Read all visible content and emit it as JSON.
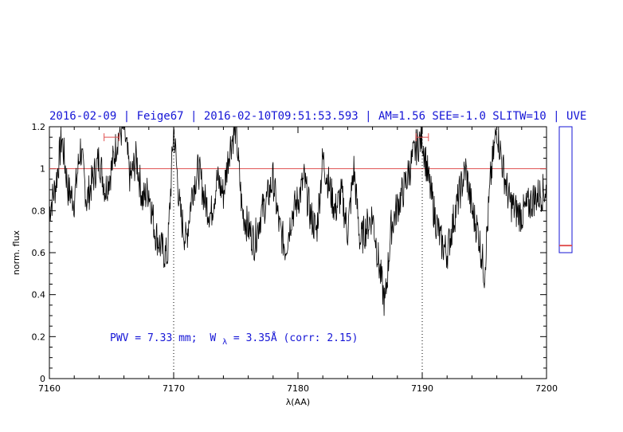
{
  "chart_data": {
    "type": "line",
    "title": "2016-02-09 | Feige67 | 2016-02-10T09:51:53.593 | AM=1.56  SEE=-1.0  SLITW=10 | UVE",
    "xlabel": "λ(AA)",
    "ylabel": "norm. flux",
    "xlim": [
      7160,
      7200
    ],
    "ylim": [
      0,
      1.2
    ],
    "xticks": [
      7160,
      7170,
      7180,
      7190,
      7200
    ],
    "yticks": [
      0,
      0.2,
      0.4,
      0.6,
      0.8,
      1,
      1.2
    ],
    "xtick_labels": [
      "7160",
      "7170",
      "7180",
      "7190",
      "7200"
    ],
    "ytick_labels": [
      "0",
      "0.2",
      "0.4",
      "0.6",
      "0.8",
      "1",
      "1.2"
    ],
    "continuum_level": 1.0,
    "vertical_markers_x": [
      7170,
      7190
    ],
    "error_markers": [
      {
        "x": 7165.0,
        "y": 1.15,
        "xerr": 0.6
      },
      {
        "x": 7190.0,
        "y": 1.15,
        "xerr": 0.5
      }
    ],
    "annotation": {
      "pwv": "PWV = 7.33 mm;",
      "w_symbol": "W",
      "w_sub": "λ",
      "w_value": " = 3.35Å (corr: 2.15)"
    },
    "inset_panel": {
      "markers": [
        0.68,
        0.67
      ]
    },
    "series": [
      {
        "x": [
          7160.0,
          7160.5,
          7161.0,
          7161.5,
          7162.0,
          7162.5,
          7163.0,
          7163.5,
          7164.0,
          7164.5,
          7165.0,
          7165.5,
          7166.0,
          7166.5,
          7167.0,
          7167.5,
          7168.0,
          7168.5,
          7169.0,
          7169.5,
          7170.0,
          7170.5,
          7171.0,
          7171.5,
          7172.0,
          7172.5,
          7173.0,
          7173.5,
          7174.0,
          7174.5,
          7175.0,
          7175.5,
          7176.0,
          7176.5,
          7177.0,
          7177.5,
          7178.0,
          7178.5,
          7179.0,
          7179.5,
          7180.0,
          7180.5,
          7181.0,
          7181.5,
          7182.0,
          7182.5,
          7183.0,
          7183.5,
          7184.0,
          7184.5,
          7185.0,
          7185.5,
          7186.0,
          7186.5,
          7187.0,
          7187.5,
          7188.0,
          7188.5,
          7189.0,
          7189.5,
          7190.0,
          7190.5,
          7191.0,
          7191.5,
          7192.0,
          7192.5,
          7193.0,
          7193.5,
          7194.0,
          7194.5,
          7195.0,
          7195.5,
          7196.0,
          7196.5,
          7197.0,
          7197.5,
          7198.0,
          7198.5,
          7199.0,
          7199.5,
          7200.0
        ],
        "y": [
          0.8,
          0.92,
          1.15,
          0.9,
          0.85,
          1.1,
          0.85,
          0.95,
          1.05,
          0.9,
          1.0,
          1.15,
          1.2,
          0.95,
          1.05,
          0.85,
          0.9,
          0.7,
          0.62,
          0.58,
          1.2,
          0.8,
          0.65,
          0.9,
          1.0,
          0.85,
          0.78,
          0.95,
          0.88,
          1.1,
          1.2,
          0.8,
          0.72,
          0.65,
          0.78,
          0.85,
          0.95,
          0.72,
          0.62,
          0.78,
          0.85,
          0.95,
          0.78,
          0.7,
          1.05,
          0.92,
          0.8,
          0.88,
          0.7,
          1.0,
          0.65,
          0.72,
          0.78,
          0.55,
          0.35,
          0.72,
          0.82,
          0.9,
          1.0,
          1.1,
          1.15,
          0.95,
          0.78,
          0.65,
          0.6,
          0.75,
          0.88,
          1.0,
          0.8,
          0.7,
          0.5,
          0.95,
          1.2,
          1.0,
          0.85,
          0.8,
          0.78,
          0.82,
          0.86,
          0.88,
          0.9
        ]
      }
    ]
  }
}
